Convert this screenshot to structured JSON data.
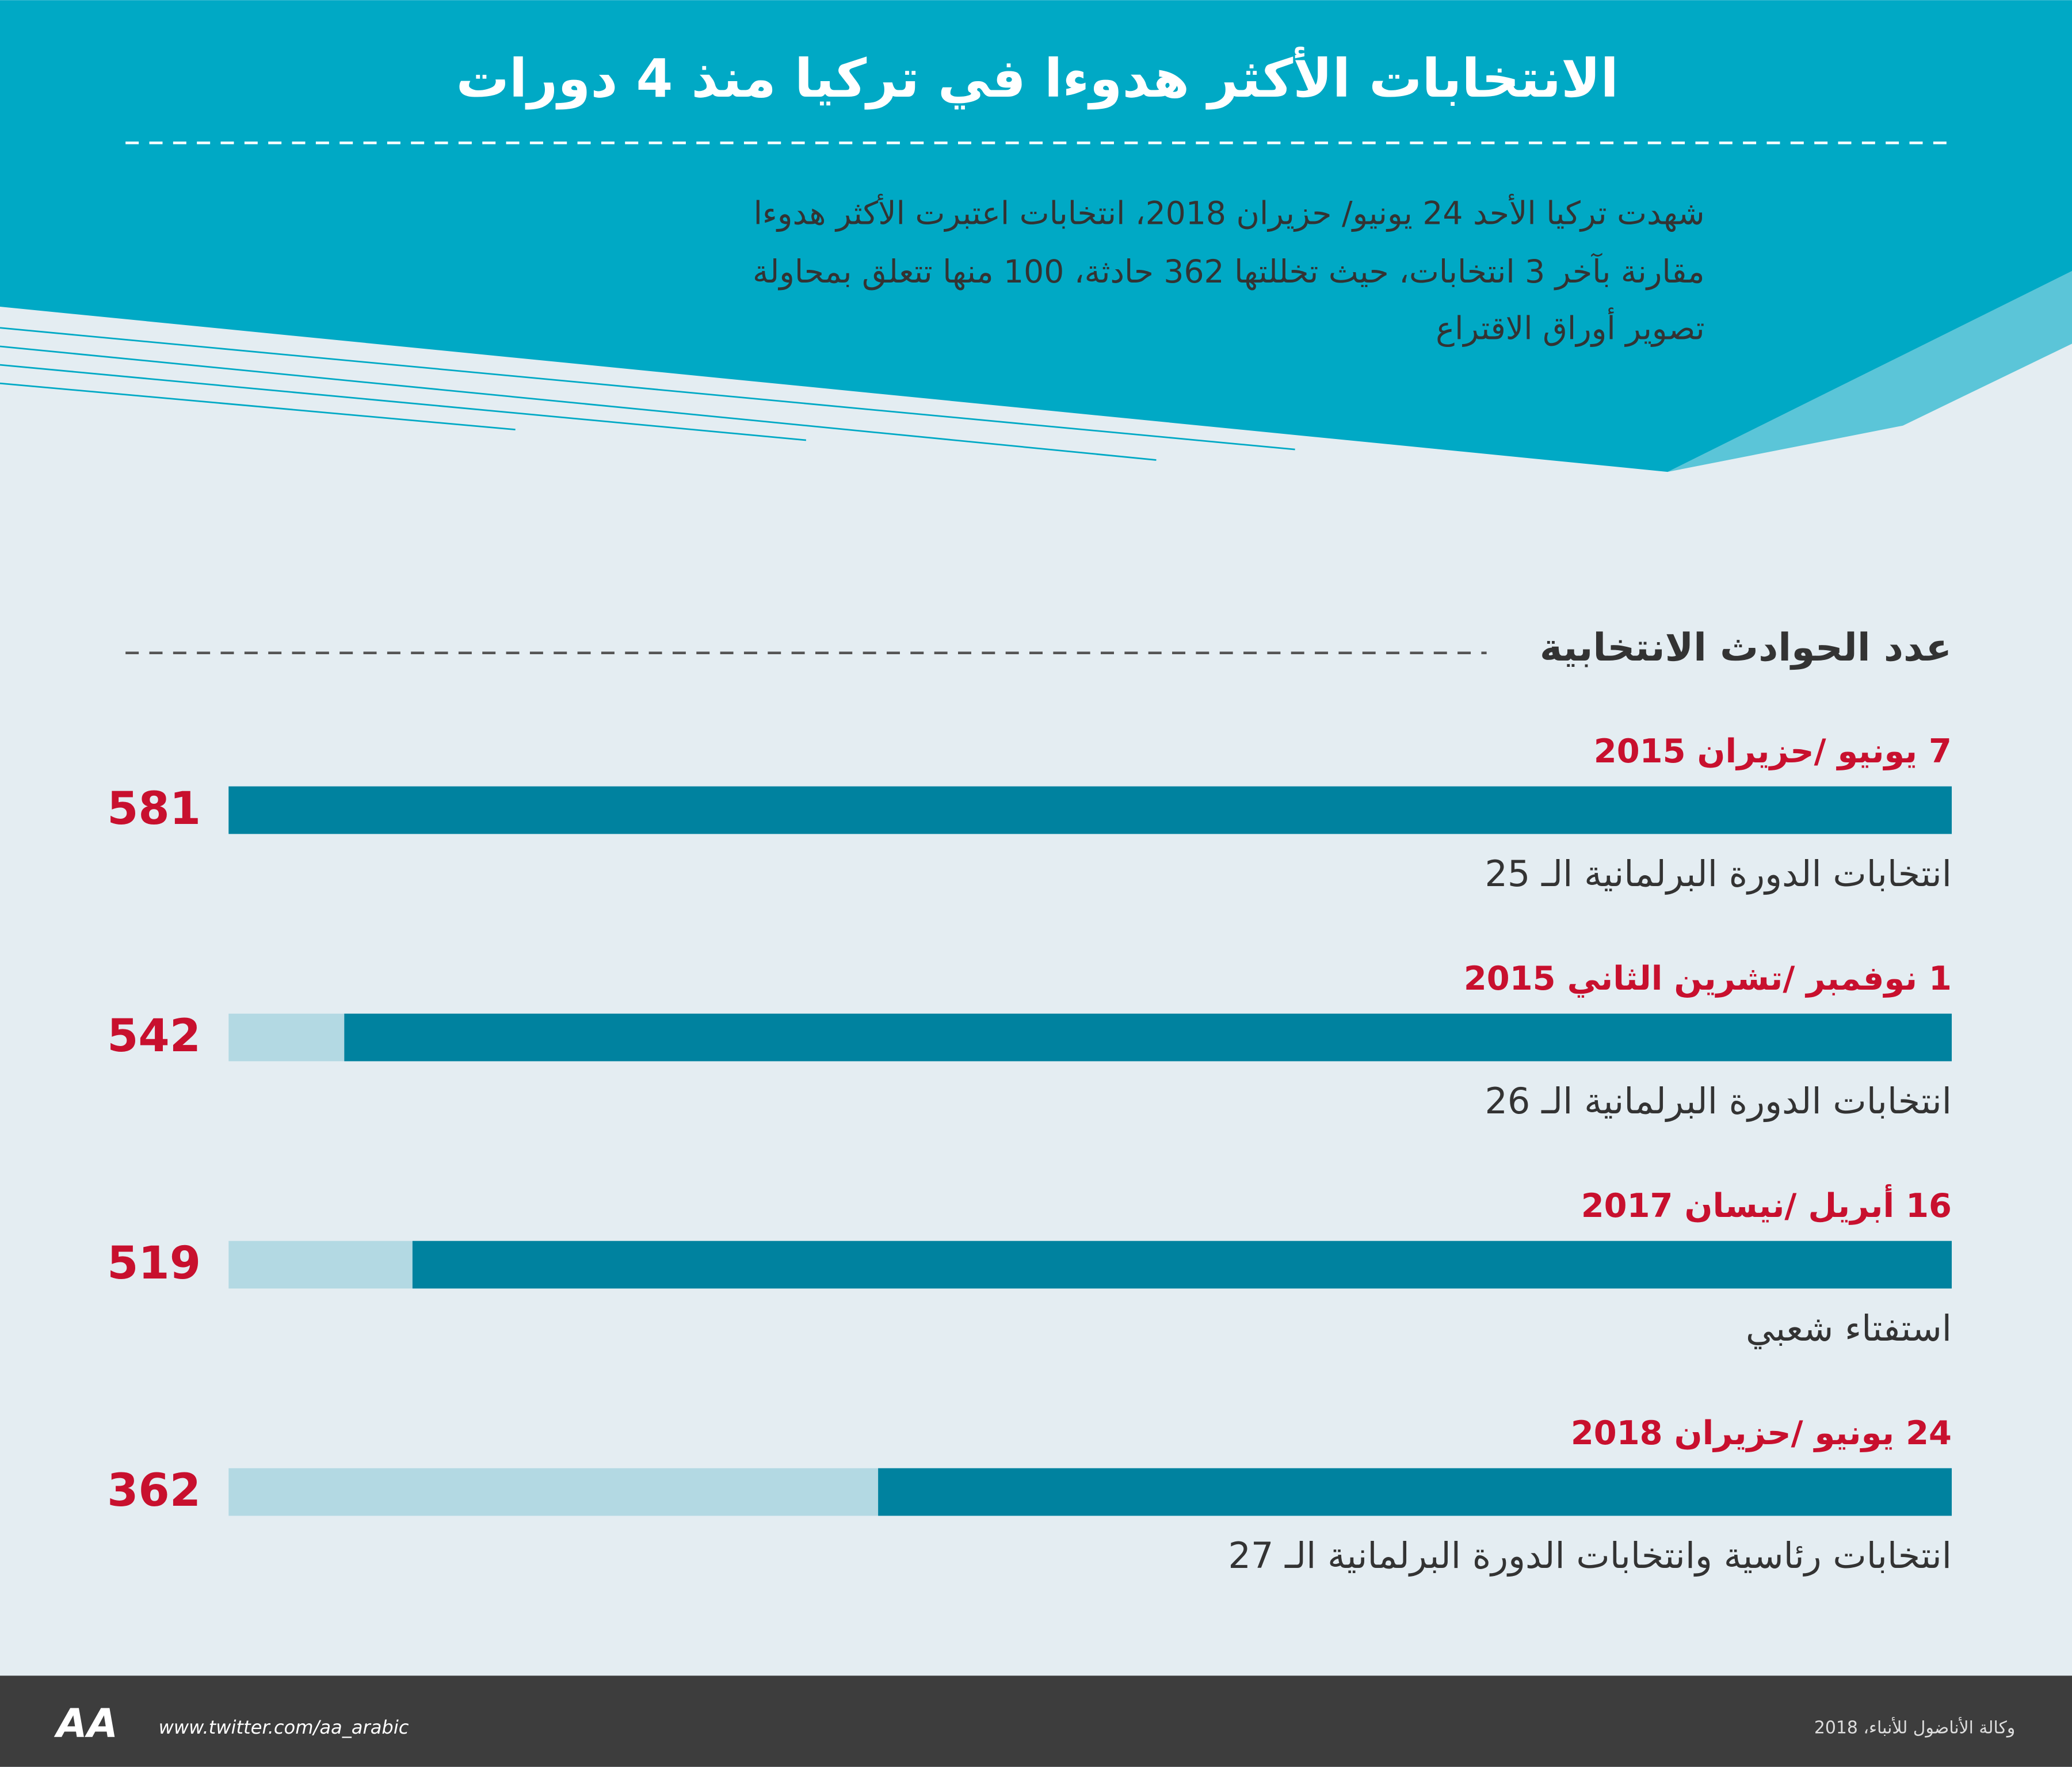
{
  "chart_data": {
    "type": "bar",
    "title": "الانتخابات الأكثر هدوءا  في تركيا منذ 4 دورات",
    "subtitle_lines": [
      "شهدت  تركيا الأحد 24 يونيو/ حزيران 2018، انتخابات اعتبرت الأكثر هدوءا",
      "مقارنة بآخر 3 انتخابات، حيث تخللتها 362 حادثة، 100 منها تتعلق بمحاولة",
      "تصوير أوراق الاقتراع"
    ],
    "axis_label": "عدد الحوادث الانتخابية",
    "categories": [
      "7 يونيو /حزيران 2015",
      "1 نوفمبر /تشرين الثاني 2015",
      "16 أبريل /نيسان 2017",
      "24 يونيو /حزيران 2018"
    ],
    "descriptions": [
      "انتخابات الدورة البرلمانية الـ 25",
      "انتخابات الدورة البرلمانية الـ 26",
      "استفتاء شعبي",
      "انتخابات رئاسية وانتخابات الدورة البرلمانية الـ 27"
    ],
    "values": [
      581,
      542,
      519,
      362
    ],
    "xlim": [
      0,
      581
    ],
    "color": "#00829f",
    "track_color": "#b3d9e3",
    "label_color": "#c8102e"
  },
  "footer": {
    "logo": "AA",
    "url": "www.twitter.com/aa_arabic",
    "credit": "وكالة الأناضول للأنباء، 2018"
  }
}
